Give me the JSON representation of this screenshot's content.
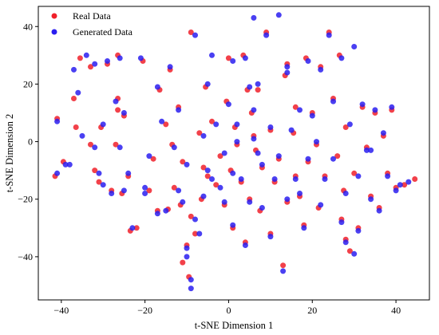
{
  "chart_data": {
    "type": "scatter",
    "title": "",
    "xlabel": "t-SNE Dimension 1",
    "ylabel": "t-SNE Dimension 2",
    "xlim": [
      -45.5,
      48
    ],
    "ylim": [
      -55,
      47
    ],
    "xticks": [
      -40,
      -20,
      0,
      20,
      40
    ],
    "yticks": [
      -40,
      -20,
      0,
      20,
      40
    ],
    "xtick_labels": [
      "−40",
      "−20",
      "0",
      "20",
      "40"
    ],
    "ytick_labels": [
      "−40",
      "−20",
      "0",
      "20",
      "40"
    ],
    "grid": false,
    "legend_position": "top-left",
    "series": [
      {
        "name": "Real Data",
        "color": "#f0202a",
        "points": [
          [
            -41.5,
            -12
          ],
          [
            -41,
            8
          ],
          [
            -39.5,
            -7
          ],
          [
            -37,
            15
          ],
          [
            -36.5,
            5
          ],
          [
            -35.5,
            29
          ],
          [
            -33,
            26
          ],
          [
            -33,
            -1
          ],
          [
            -32,
            -10
          ],
          [
            -31,
            -14
          ],
          [
            -30.5,
            5
          ],
          [
            -29,
            27
          ],
          [
            -28,
            -17
          ],
          [
            -27,
            -1
          ],
          [
            -26.5,
            30
          ],
          [
            -26.5,
            15
          ],
          [
            -26.5,
            11
          ],
          [
            -25.5,
            -18
          ],
          [
            -25,
            9
          ],
          [
            -24,
            -12
          ],
          [
            -23.5,
            -31
          ],
          [
            -22,
            -30
          ],
          [
            -20.5,
            28
          ],
          [
            -19,
            -17
          ],
          [
            -18,
            -6
          ],
          [
            -17,
            -24
          ],
          [
            -16.5,
            18
          ],
          [
            -15,
            6
          ],
          [
            -14.5,
            -23.5
          ],
          [
            -14,
            25
          ],
          [
            -13.5,
            -1
          ],
          [
            -13,
            -16
          ],
          [
            -12,
            12
          ],
          [
            -11.5,
            -22
          ],
          [
            -11,
            -7
          ],
          [
            -11,
            -42
          ],
          [
            -10,
            -36
          ],
          [
            -9.5,
            -47
          ],
          [
            -9,
            38
          ],
          [
            -9,
            -26
          ],
          [
            -8,
            -32
          ],
          [
            -7,
            3
          ],
          [
            -6.5,
            -20
          ],
          [
            -6,
            -9
          ],
          [
            -5.5,
            19
          ],
          [
            -5,
            -12
          ],
          [
            -4,
            7
          ],
          [
            -3,
            -15
          ],
          [
            -2,
            -5
          ],
          [
            -1,
            -22
          ],
          [
            -0.5,
            14
          ],
          [
            0,
            29
          ],
          [
            0.5,
            -10
          ],
          [
            1,
            -30
          ],
          [
            1.5,
            5
          ],
          [
            2,
            -1
          ],
          [
            3,
            -14
          ],
          [
            3.5,
            30
          ],
          [
            4,
            -35
          ],
          [
            4.5,
            18
          ],
          [
            5,
            -20
          ],
          [
            5.5,
            10
          ],
          [
            6,
            2
          ],
          [
            6.5,
            -3
          ],
          [
            7,
            18
          ],
          [
            7.5,
            -24
          ],
          [
            8,
            -9
          ],
          [
            9,
            38
          ],
          [
            10,
            -32
          ],
          [
            10,
            4
          ],
          [
            11,
            -14
          ],
          [
            12,
            -6
          ],
          [
            13,
            -43
          ],
          [
            13.5,
            23
          ],
          [
            14,
            27
          ],
          [
            14,
            -21
          ],
          [
            15.5,
            3
          ],
          [
            16,
            -12
          ],
          [
            16,
            12
          ],
          [
            17,
            -19
          ],
          [
            18,
            -29
          ],
          [
            18.5,
            29
          ],
          [
            19,
            -7
          ],
          [
            20,
            10
          ],
          [
            21,
            -1
          ],
          [
            21.5,
            -23
          ],
          [
            22,
            26
          ],
          [
            23,
            -12
          ],
          [
            24,
            38
          ],
          [
            25,
            15
          ],
          [
            26,
            -5
          ],
          [
            26.5,
            30
          ],
          [
            27,
            -27
          ],
          [
            27.5,
            -17
          ],
          [
            28,
            -34
          ],
          [
            28,
            5
          ],
          [
            29,
            -38
          ],
          [
            30,
            -11
          ],
          [
            31,
            -30
          ],
          [
            32,
            12
          ],
          [
            33,
            -2
          ],
          [
            34,
            -19
          ],
          [
            35,
            10
          ],
          [
            36,
            -23
          ],
          [
            37,
            2
          ],
          [
            38,
            -11
          ],
          [
            39,
            11
          ],
          [
            40,
            -16
          ],
          [
            42,
            -15
          ],
          [
            44.5,
            -13
          ]
        ]
      },
      {
        "name": "Generated Data",
        "color": "#2a1ef0",
        "points": [
          [
            -41,
            -11
          ],
          [
            -41,
            7
          ],
          [
            -39,
            -8
          ],
          [
            -37,
            25
          ],
          [
            -36,
            17
          ],
          [
            -35,
            2
          ],
          [
            -34,
            30
          ],
          [
            -32,
            27
          ],
          [
            -32,
            -2
          ],
          [
            -31,
            -11
          ],
          [
            -30,
            -15
          ],
          [
            -30,
            6
          ],
          [
            -29,
            28
          ],
          [
            -28,
            -18
          ],
          [
            -27,
            14
          ],
          [
            -26,
            -2
          ],
          [
            -26,
            29
          ],
          [
            -25,
            10
          ],
          [
            -25,
            -17
          ],
          [
            -24,
            -11
          ],
          [
            -23,
            -30
          ],
          [
            -21,
            29
          ],
          [
            -20,
            -16
          ],
          [
            -19,
            -5
          ],
          [
            -17,
            -25
          ],
          [
            -17,
            19
          ],
          [
            -16,
            7
          ],
          [
            -15,
            -24
          ],
          [
            -14,
            26
          ],
          [
            -13,
            -2
          ],
          [
            -12,
            -17
          ],
          [
            -12,
            11
          ],
          [
            -11,
            -21
          ],
          [
            -10,
            -8
          ],
          [
            -10,
            -40
          ],
          [
            -10,
            -37
          ],
          [
            -9,
            -48
          ],
          [
            -9,
            -51
          ],
          [
            -8,
            37
          ],
          [
            -8,
            -27
          ],
          [
            -7,
            -32
          ],
          [
            -6,
            2
          ],
          [
            -6,
            -19
          ],
          [
            -5,
            -10
          ],
          [
            -5,
            20
          ],
          [
            -4,
            -13
          ],
          [
            -3,
            6
          ],
          [
            -2,
            -16
          ],
          [
            -1,
            -4
          ],
          [
            -1,
            -21
          ],
          [
            0,
            13
          ],
          [
            1,
            28
          ],
          [
            1,
            -11
          ],
          [
            1,
            -29
          ],
          [
            2,
            6
          ],
          [
            2,
            0
          ],
          [
            3,
            -13
          ],
          [
            4,
            29
          ],
          [
            4,
            -36
          ],
          [
            5,
            19
          ],
          [
            5,
            -21
          ],
          [
            6,
            11
          ],
          [
            6,
            1
          ],
          [
            7,
            -4
          ],
          [
            7,
            20
          ],
          [
            8,
            -23
          ],
          [
            8,
            -8
          ],
          [
            9,
            37
          ],
          [
            10,
            -33
          ],
          [
            10,
            5
          ],
          [
            11,
            -13
          ],
          [
            12,
            -5
          ],
          [
            13,
            -45
          ],
          [
            14,
            24
          ],
          [
            14,
            26
          ],
          [
            14,
            -20
          ],
          [
            15,
            4
          ],
          [
            16,
            -13
          ],
          [
            17,
            11
          ],
          [
            17,
            -18
          ],
          [
            18,
            -30
          ],
          [
            19,
            28
          ],
          [
            19,
            -6
          ],
          [
            20,
            9
          ],
          [
            21,
            0
          ],
          [
            22,
            -22
          ],
          [
            22,
            25
          ],
          [
            23,
            -13
          ],
          [
            24,
            37
          ],
          [
            25,
            14
          ],
          [
            25,
            -6
          ],
          [
            27,
            29
          ],
          [
            27,
            -28
          ],
          [
            28,
            -18
          ],
          [
            28,
            -35
          ],
          [
            29,
            6
          ],
          [
            30,
            -39
          ],
          [
            31,
            -12
          ],
          [
            31,
            -31
          ],
          [
            32,
            13
          ],
          [
            33,
            -3
          ],
          [
            34,
            -20
          ],
          [
            35,
            11
          ],
          [
            36,
            -24
          ],
          [
            37,
            3
          ],
          [
            38,
            -12
          ],
          [
            39,
            12
          ],
          [
            40,
            -17
          ],
          [
            41,
            -15
          ],
          [
            43,
            -14
          ],
          [
            -38,
            -8
          ],
          [
            -20,
            -18
          ],
          [
            -4,
            30
          ],
          [
            6,
            43
          ],
          [
            12,
            44
          ],
          [
            30,
            33
          ],
          [
            34,
            -3
          ]
        ]
      }
    ]
  }
}
